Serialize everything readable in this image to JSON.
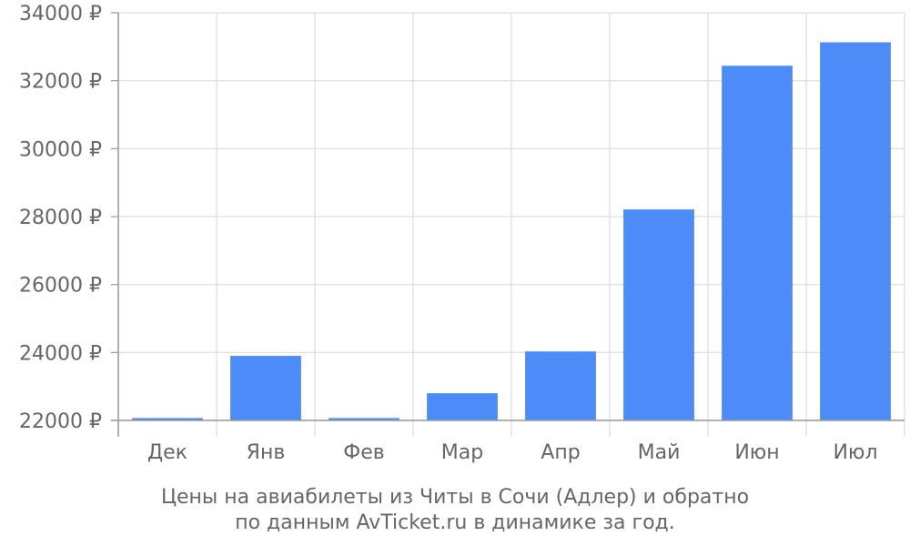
{
  "chart_data": {
    "type": "bar",
    "categories": [
      "Дек",
      "Янв",
      "Фев",
      "Мар",
      "Апр",
      "Май",
      "Июн",
      "Июл"
    ],
    "values": [
      22070,
      23900,
      22070,
      22800,
      24030,
      28210,
      32440,
      33130
    ],
    "ylim": [
      22000,
      34000
    ],
    "yticks": [
      22000,
      24000,
      26000,
      28000,
      30000,
      32000,
      34000
    ],
    "ytick_labels": [
      "22000 ₽",
      "24000 ₽",
      "26000 ₽",
      "28000 ₽",
      "30000 ₽",
      "32000 ₽",
      "34000 ₽"
    ],
    "grid": true,
    "bar_color": "#4d8bf8",
    "caption_lines": [
      "Цены на авиабилеты из Читы в Сочи (Адлер) и обратно",
      "по данным AvTicket.ru в динамике за год."
    ]
  }
}
